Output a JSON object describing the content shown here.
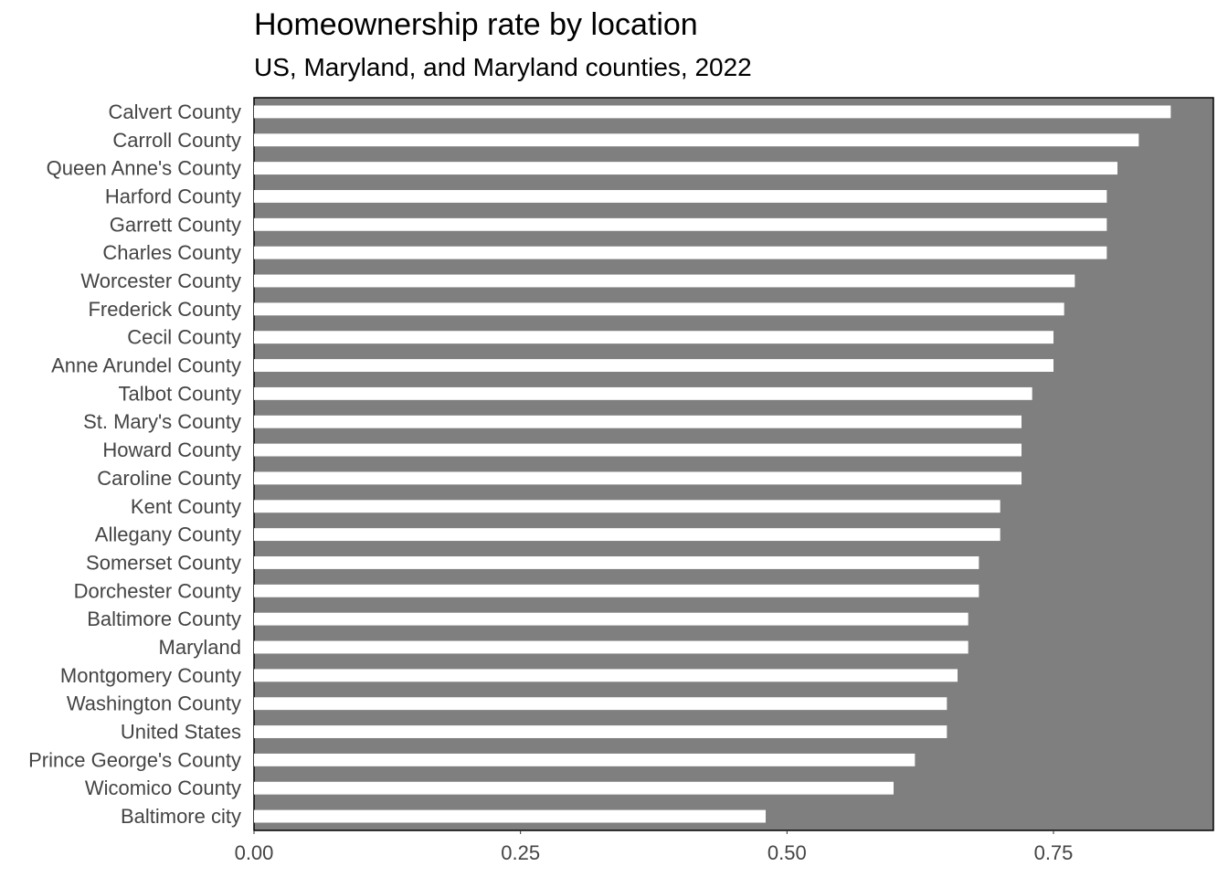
{
  "chart_data": {
    "type": "bar",
    "orientation": "horizontal",
    "title": "Homeownership rate by location",
    "subtitle": "US, Maryland, and Maryland counties, 2022",
    "xlabel": "",
    "ylabel": "",
    "xlim": [
      0,
      0.9
    ],
    "xticks": [
      0.0,
      0.25,
      0.5,
      0.75
    ],
    "xtick_labels": [
      "0.00",
      "0.25",
      "0.50",
      "0.75"
    ],
    "grid": false,
    "panel_background": "#7f7f7f",
    "bar_color": "#ffffff",
    "categories": [
      "Calvert County",
      "Carroll County",
      "Queen Anne's County",
      "Harford County",
      "Garrett County",
      "Charles County",
      "Worcester County",
      "Frederick County",
      "Cecil County",
      "Anne Arundel County",
      "Talbot County",
      "St. Mary's County",
      "Howard County",
      "Caroline County",
      "Kent County",
      "Allegany County",
      "Somerset County",
      "Dorchester County",
      "Baltimore County",
      "Maryland",
      "Montgomery County",
      "Washington County",
      "United States",
      "Prince George's County",
      "Wicomico County",
      "Baltimore city"
    ],
    "values": [
      0.86,
      0.83,
      0.81,
      0.8,
      0.8,
      0.8,
      0.77,
      0.76,
      0.75,
      0.75,
      0.73,
      0.72,
      0.72,
      0.72,
      0.7,
      0.7,
      0.68,
      0.68,
      0.67,
      0.67,
      0.66,
      0.65,
      0.65,
      0.62,
      0.6,
      0.48
    ]
  }
}
